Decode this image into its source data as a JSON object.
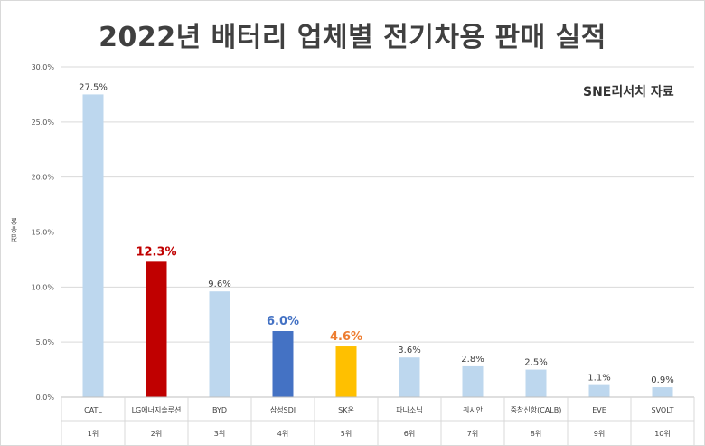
{
  "chart_data": {
    "type": "bar",
    "title": "2022년 배터리 업체별 전기차용 판매 실적",
    "annotation": "SNE리서치 자료",
    "ylabel": "점유율",
    "ylim": [
      0,
      30
    ],
    "yticks": [
      "0.0%",
      "5.0%",
      "10.0%",
      "15.0%",
      "20.0%",
      "25.0%",
      "30.0%"
    ],
    "grid": true,
    "categories": [
      "CATL",
      "LG에너지솔루션",
      "BYD",
      "삼성SDI",
      "SK온",
      "파나소닉",
      "궈시안",
      "중창신항(CALB)",
      "EVE",
      "SVOLT"
    ],
    "ranks": [
      "1위",
      "2위",
      "3위",
      "4위",
      "5위",
      "6위",
      "7위",
      "8위",
      "9위",
      "10위"
    ],
    "values": [
      27.5,
      12.3,
      9.6,
      6.0,
      4.6,
      3.6,
      2.8,
      2.5,
      1.1,
      0.9
    ],
    "value_labels": [
      "27.5%",
      "12.3%",
      "9.6%",
      "6.0%",
      "4.6%",
      "3.6%",
      "2.8%",
      "2.5%",
      "1.1%",
      "0.9%"
    ],
    "bar_colors": [
      "#bdd7ee",
      "#c00000",
      "#bdd7ee",
      "#4472c4",
      "#ffc000",
      "#bdd7ee",
      "#bdd7ee",
      "#bdd7ee",
      "#bdd7ee",
      "#bdd7ee"
    ],
    "label_colors": [
      "#404040",
      "#c00000",
      "#404040",
      "#4472c4",
      "#ed7d31",
      "#404040",
      "#404040",
      "#404040",
      "#404040",
      "#404040"
    ],
    "highlighted": [
      false,
      true,
      false,
      true,
      true,
      false,
      false,
      false,
      false,
      false
    ]
  }
}
